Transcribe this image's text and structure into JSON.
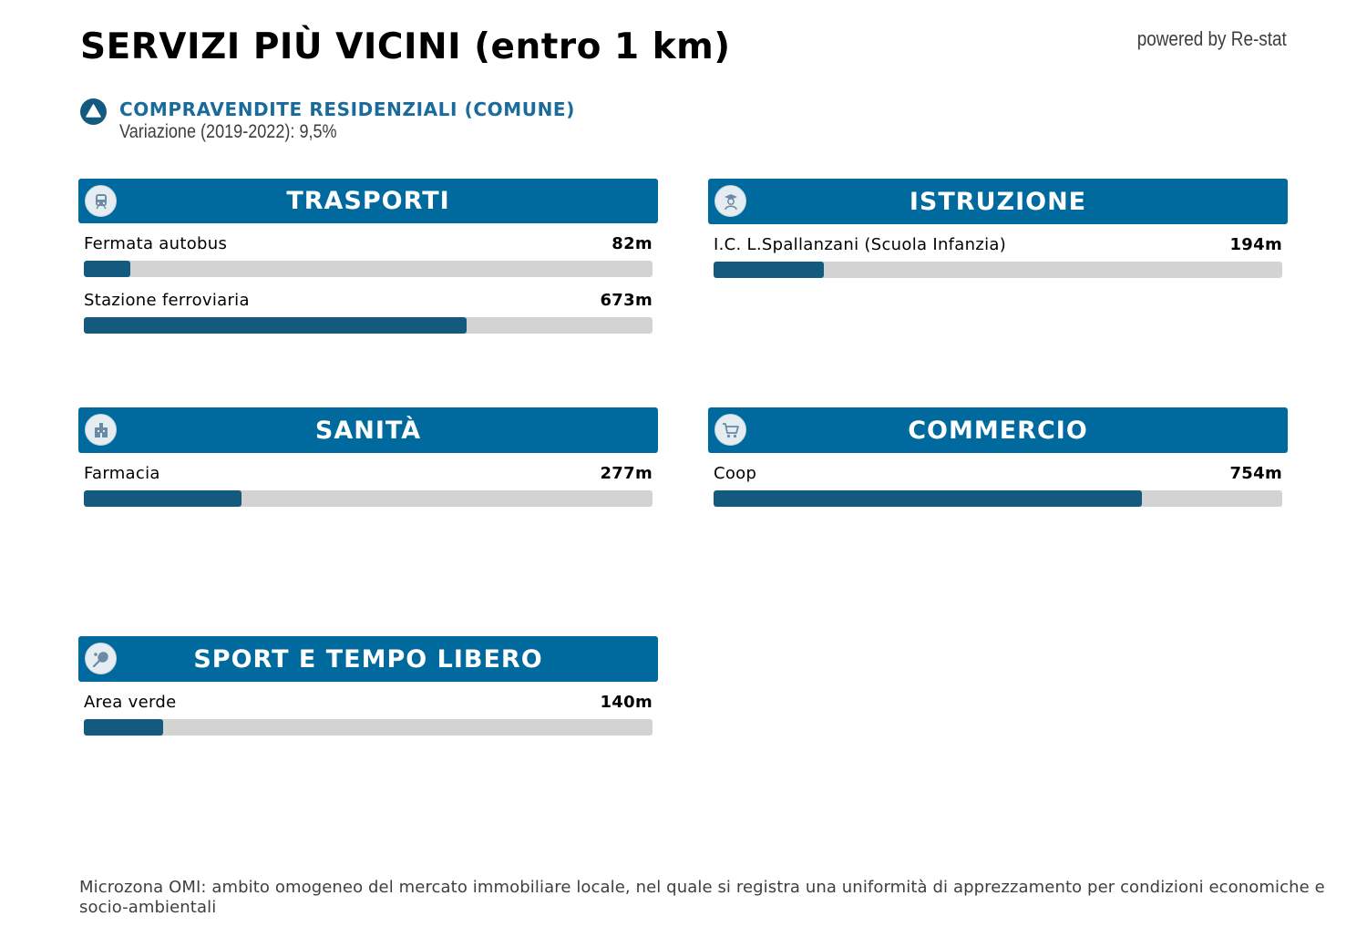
{
  "title": "SERVIZI PIÙ VICINI (entro 1 km)",
  "powered_by": "powered by Re-stat",
  "trend": {
    "title": "COMPRAVENDITE RESIDENZIALI (COMUNE)",
    "subtitle": "Variazione (2019-2022): 9,5%",
    "icon": "triangle-up-icon"
  },
  "max_distance_m": 1000,
  "categories": [
    {
      "key": "trasporti",
      "title": "TRASPORTI",
      "icon": "train-icon",
      "items": [
        {
          "label": "Fermata autobus",
          "distance": "82m",
          "meters": 82
        },
        {
          "label": "Stazione ferroviaria",
          "distance": "673m",
          "meters": 673
        }
      ]
    },
    {
      "key": "istruzione",
      "title": "ISTRUZIONE",
      "icon": "student-icon",
      "items": [
        {
          "label": "I.C. L.Spallanzani (Scuola Infanzia)",
          "distance": "194m",
          "meters": 194
        }
      ]
    },
    {
      "key": "sanita",
      "title": "SANITÀ",
      "icon": "hospital-icon",
      "items": [
        {
          "label": "Farmacia",
          "distance": "277m",
          "meters": 277
        }
      ]
    },
    {
      "key": "commercio",
      "title": "COMMERCIO",
      "icon": "shopping-cart-icon",
      "items": [
        {
          "label": "Coop",
          "distance": "754m",
          "meters": 754
        }
      ]
    },
    {
      "key": "sport",
      "title": "SPORT E TEMPO LIBERO",
      "icon": "tennis-racket-icon",
      "items": [
        {
          "label": "Area verde",
          "distance": "140m",
          "meters": 140
        }
      ]
    }
  ],
  "footnote": "Microzona OMI: ambito omogeneo del mercato immobiliare locale, nel quale si registra una uniformità di apprezzamento per condizioni economiche e socio-ambientali",
  "colors": {
    "header_bg": "#00699e",
    "bar_fill": "#135a7e",
    "bar_track": "#d3d3d3",
    "trend_title": "#1a6b9c"
  }
}
